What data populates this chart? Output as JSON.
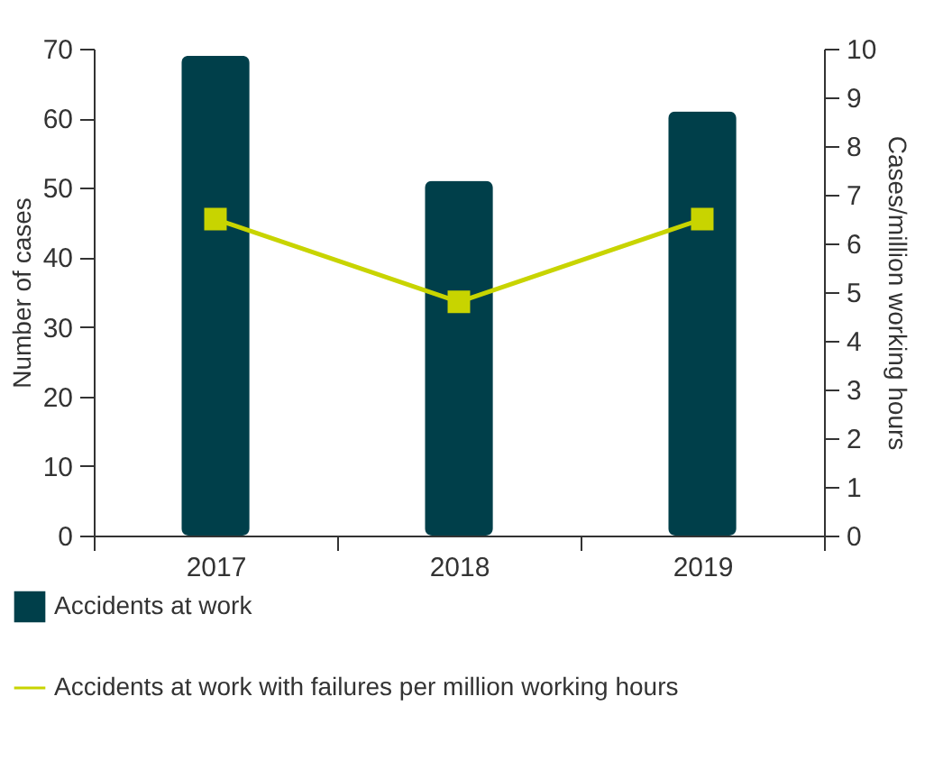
{
  "chart_data": {
    "type": "bar",
    "categories": [
      "2017",
      "2018",
      "2019"
    ],
    "ylabel": "Number of cases",
    "y2label": "Cases/million working hours",
    "ylim": [
      0,
      70
    ],
    "yticks": [
      0,
      10,
      20,
      30,
      40,
      50,
      60,
      70
    ],
    "y2lim": [
      0,
      10
    ],
    "y2ticks": [
      0,
      1,
      2,
      3,
      4,
      5,
      6,
      7,
      8,
      9,
      10
    ],
    "grid": false,
    "legend": "bottom left",
    "marker": "square",
    "series": [
      {
        "name": "Accidents at work",
        "color": "#003f4a",
        "values": [
          69,
          51,
          61
        ]
      },
      {
        "name": "Accidents at work with failures per million working hours",
        "type": "line",
        "axis": "y2",
        "color": "#c8d400",
        "values": [
          6.5,
          4.8,
          6.5
        ]
      }
    ]
  }
}
